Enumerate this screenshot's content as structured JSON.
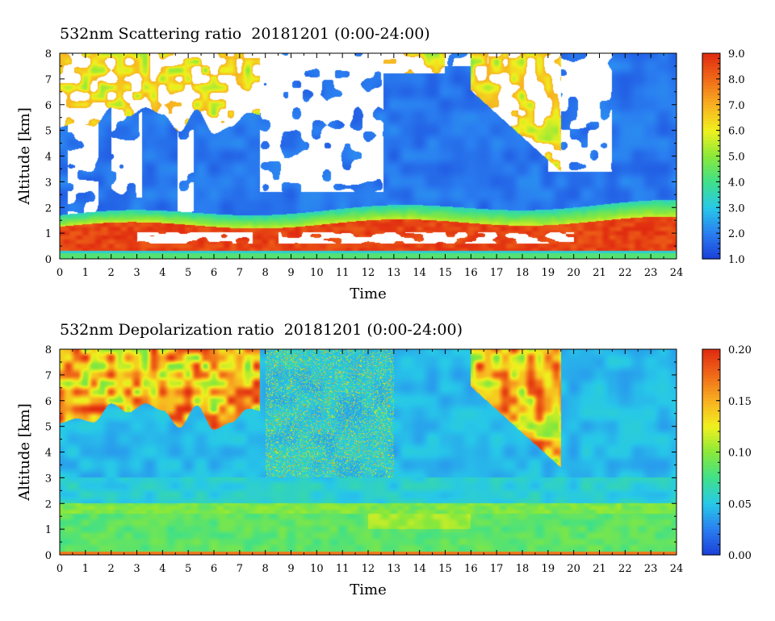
{
  "chart_data": [
    {
      "type": "heatmap",
      "title": "532nm Scattering ratio  20181201 (0:00-24:00)",
      "xlabel": "Time",
      "ylabel": "Altitude [km]",
      "xlim": [
        0,
        24
      ],
      "ylim": [
        0,
        8
      ],
      "x_ticks": [
        "0",
        "1",
        "2",
        "3",
        "4",
        "5",
        "6",
        "7",
        "8",
        "9",
        "10",
        "11",
        "12",
        "13",
        "14",
        "15",
        "16",
        "17",
        "18",
        "19",
        "20",
        "21",
        "22",
        "23",
        "24"
      ],
      "y_ticks": [
        "0",
        "1",
        "2",
        "3",
        "4",
        "5",
        "6",
        "7",
        "8"
      ],
      "colorbar": {
        "range": [
          1.0,
          9.0
        ],
        "ticks": [
          "1.0",
          "2.0",
          "3.0",
          "4.0",
          "5.0",
          "6.0",
          "7.0",
          "8.0",
          "9.0"
        ],
        "colormap": [
          "#1a3fd8",
          "#2a7ef0",
          "#27c8e8",
          "#3fe08a",
          "#8ae83a",
          "#f0f01e",
          "#f8b020",
          "#f06a18",
          "#e02a10"
        ]
      }
    },
    {
      "type": "heatmap",
      "title": "532nm Depolarization ratio  20181201 (0:00-24:00)",
      "xlabel": "Time",
      "ylabel": "Altitude [km]",
      "xlim": [
        0,
        24
      ],
      "ylim": [
        0,
        8
      ],
      "x_ticks": [
        "0",
        "1",
        "2",
        "3",
        "4",
        "5",
        "6",
        "7",
        "8",
        "9",
        "10",
        "11",
        "12",
        "13",
        "14",
        "15",
        "16",
        "17",
        "18",
        "19",
        "20",
        "21",
        "22",
        "23",
        "24"
      ],
      "y_ticks": [
        "0",
        "1",
        "2",
        "3",
        "4",
        "5",
        "6",
        "7",
        "8"
      ],
      "colorbar": {
        "range": [
          0.0,
          0.2
        ],
        "ticks": [
          "0.00",
          "0.05",
          "0.10",
          "0.15",
          "0.20"
        ],
        "colormap": [
          "#1a3fd8",
          "#2a7ef0",
          "#27c8e8",
          "#3fe08a",
          "#8ae83a",
          "#f0f01e",
          "#f8b020",
          "#f06a18",
          "#e02a10"
        ]
      }
    }
  ]
}
